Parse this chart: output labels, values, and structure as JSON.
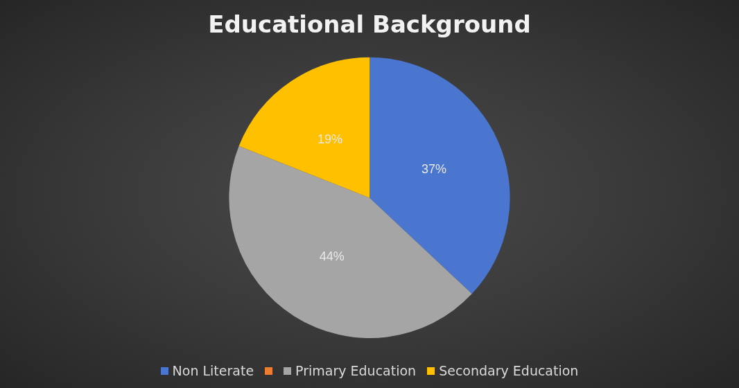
{
  "chart_data": {
    "type": "pie",
    "title": "Educational Background",
    "categories": [
      "Non Literate",
      null,
      "Primary Education",
      "Secondary Education"
    ],
    "values": [
      37,
      0,
      44,
      19
    ],
    "value_labels": [
      "37%",
      null,
      "44%",
      "19%"
    ],
    "colors": [
      "#4a76cf",
      "#ed7d31",
      "#a5a5a5",
      "#ffc000"
    ],
    "legend": "bottom"
  }
}
